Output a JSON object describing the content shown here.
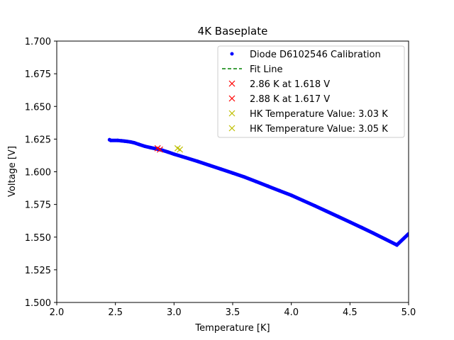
{
  "chart_data": {
    "type": "scatter",
    "title": "4K Baseplate",
    "xlabel": "Temperature [K]",
    "ylabel": "Voltage [V]",
    "xlim": [
      2.0,
      5.0
    ],
    "ylim": [
      1.5,
      1.7
    ],
    "x_ticks": [
      "2.0",
      "2.5",
      "3.0",
      "3.5",
      "4.0",
      "4.5",
      "5.0"
    ],
    "y_ticks": [
      "1.500",
      "1.525",
      "1.550",
      "1.575",
      "1.600",
      "1.625",
      "1.650",
      "1.675",
      "1.700"
    ],
    "grid": false,
    "legend_position": "top-right",
    "series": [
      {
        "name": "Diode D6102546 Calibration",
        "style": "dots",
        "color": "#0000ff",
        "x": [
          2.45,
          2.46,
          2.52,
          2.55,
          2.58,
          2.6,
          2.63,
          2.66,
          2.7,
          2.75,
          2.8,
          2.85,
          2.9,
          2.95,
          3.0,
          3.1,
          3.2,
          3.3,
          3.4,
          3.5,
          3.6,
          3.7,
          3.8,
          3.9,
          4.0,
          4.1,
          4.2,
          4.3,
          4.4,
          4.5,
          4.6,
          4.7,
          4.8,
          4.9,
          5.0
        ],
        "y": [
          1.6245,
          1.624,
          1.624,
          1.6237,
          1.6234,
          1.6232,
          1.6228,
          1.6222,
          1.621,
          1.6195,
          1.6185,
          1.6175,
          1.6165,
          1.615,
          1.6135,
          1.6108,
          1.608,
          1.605,
          1.602,
          1.599,
          1.596,
          1.5925,
          1.589,
          1.5855,
          1.582,
          1.578,
          1.574,
          1.5698,
          1.5657,
          1.5615,
          1.5573,
          1.553,
          1.5485,
          1.544,
          1.5525
        ]
      },
      {
        "name": "Fit Line",
        "style": "dashed-line",
        "color": "#008000",
        "x": [],
        "y": []
      },
      {
        "name": "2.86 K at 1.618 V",
        "style": "x-marker",
        "color": "#ff0000",
        "x": [
          2.86
        ],
        "y": [
          1.618
        ]
      },
      {
        "name": "2.88 K at 1.617 V",
        "style": "x-marker",
        "color": "#ff0000",
        "x": [
          2.88
        ],
        "y": [
          1.617
        ]
      },
      {
        "name": "HK Temperature Value: 3.03 K",
        "style": "x-marker",
        "color": "#bfbf00",
        "x": [
          3.03
        ],
        "y": [
          1.618
        ]
      },
      {
        "name": "HK Temperature Value: 3.05 K",
        "style": "x-marker",
        "color": "#bfbf00",
        "x": [
          3.05
        ],
        "y": [
          1.617
        ]
      }
    ]
  }
}
